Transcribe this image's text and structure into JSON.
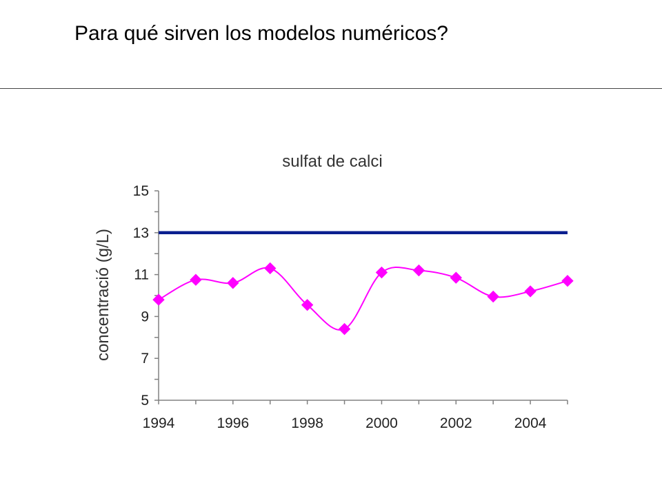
{
  "slide": {
    "title": "Para qué sirven los modelos numéricos?"
  },
  "chart_data": {
    "type": "line",
    "title": "sulfat de calci",
    "xlabel": "",
    "ylabel": "concentració (g/L)",
    "xlim": [
      1994,
      2005
    ],
    "ylim": [
      5,
      15
    ],
    "x_ticks": [
      1994,
      1996,
      1998,
      2000,
      2002,
      2004
    ],
    "y_ticks": [
      5,
      7,
      9,
      11,
      13,
      15
    ],
    "grid": false,
    "legend": "none",
    "series": [
      {
        "color": "#ff00ff",
        "marker": "diamond",
        "smooth": true,
        "x": [
          1994,
          1995,
          1996,
          1997,
          1998,
          1999,
          2000,
          2001,
          2002,
          2003,
          2004,
          2005
        ],
        "values": [
          9.8,
          10.75,
          10.6,
          11.3,
          9.55,
          8.4,
          11.1,
          11.2,
          10.85,
          9.95,
          10.2,
          10.7
        ]
      },
      {
        "color": "#0a1f8f",
        "marker": "none",
        "smooth": false,
        "x": [
          1994,
          2005
        ],
        "values": [
          13,
          13
        ]
      }
    ]
  }
}
